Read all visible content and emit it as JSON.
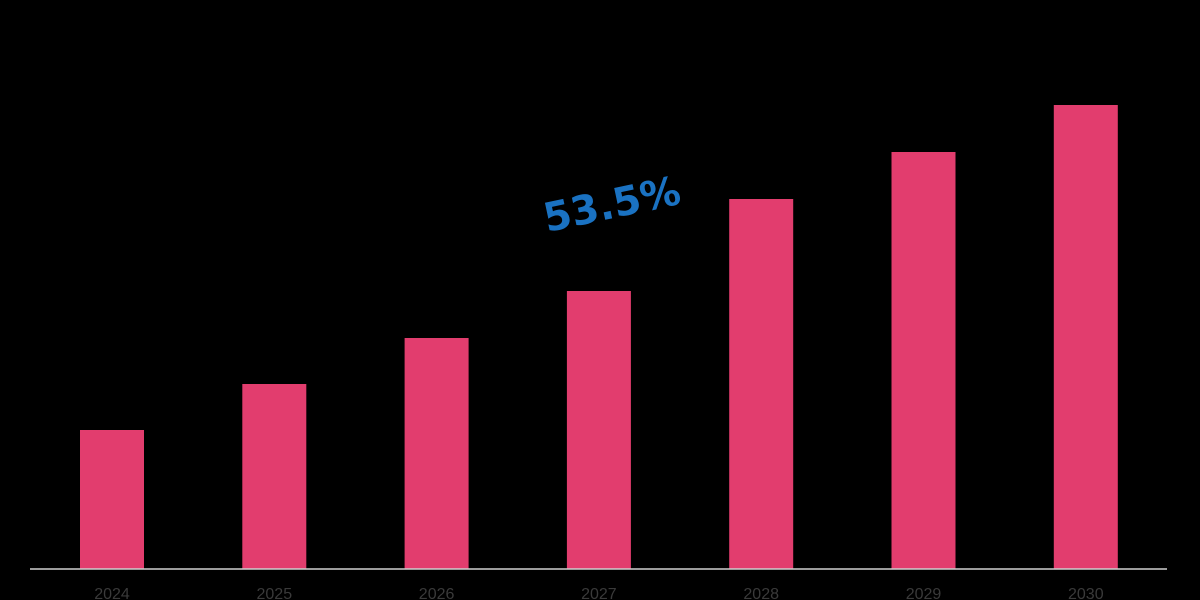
{
  "chart_data": {
    "type": "bar",
    "categories": [
      "2024",
      "2025",
      "2026",
      "2027",
      "2028",
      "2029",
      "2030"
    ],
    "values": [
      139,
      185,
      231,
      278,
      370,
      417,
      464
    ],
    "ylim": [
      0,
      500
    ],
    "grid": false,
    "legend": "none",
    "annotation": "53.5%",
    "bar_color": "#e23d6e",
    "annotation_color": "#1a72c2",
    "axis_color": "#cfcfcf",
    "tick_label_color": "#3a3a3a"
  }
}
